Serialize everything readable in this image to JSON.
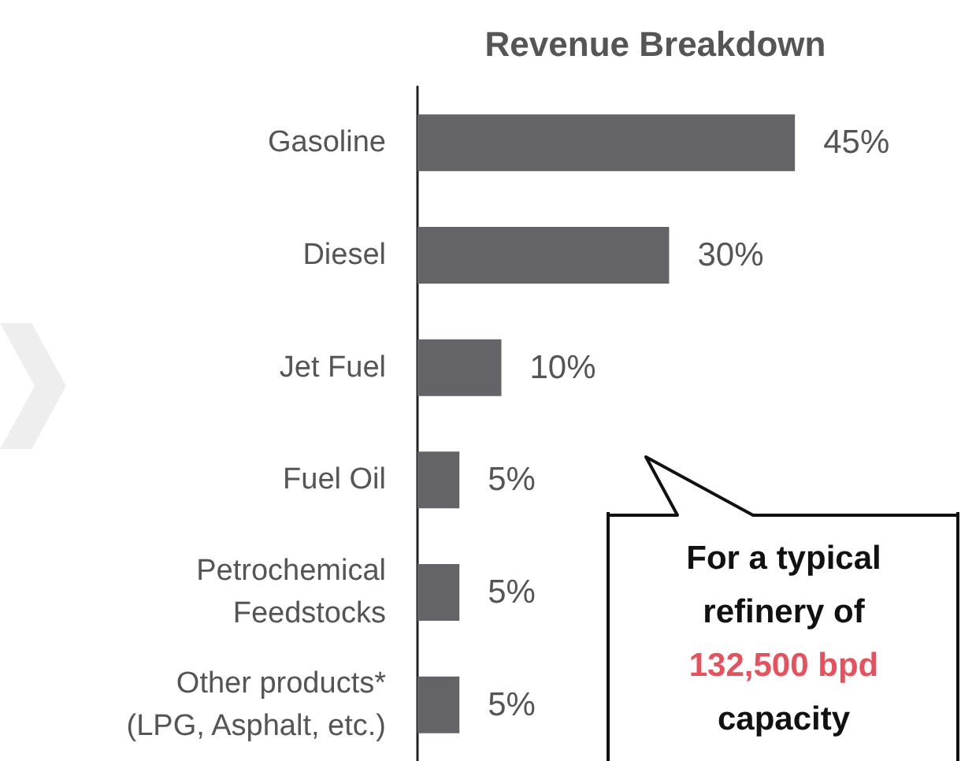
{
  "chart_data": {
    "type": "bar",
    "orientation": "horizontal",
    "title": "Revenue Breakdown",
    "categories": [
      "Gasoline",
      "Diesel",
      "Jet Fuel",
      "Fuel Oil",
      "Petrochemical\nFeedstocks",
      "Other products*\n(LPG, Asphalt, etc.)"
    ],
    "values": [
      45,
      30,
      10,
      5,
      5,
      5
    ],
    "value_labels": [
      "45%",
      "30%",
      "10%",
      "5%",
      "5%",
      "5%"
    ],
    "color": "#636368",
    "annotations": [
      "For a typical refinery of",
      "132,500 bpd",
      "capacity"
    ]
  }
}
